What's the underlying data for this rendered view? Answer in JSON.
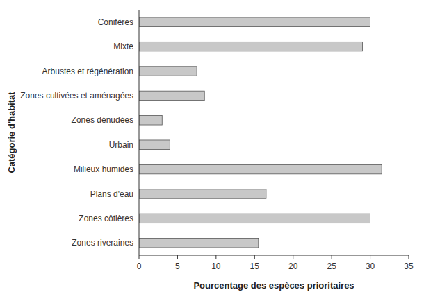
{
  "chart_data": {
    "type": "bar",
    "orientation": "horizontal",
    "categories": [
      "Zones riveraines",
      "Zones côtières",
      "Plans d'eau",
      "Milieux humides",
      "Urbain",
      "Zones dénudées",
      "Zones cultivées et aménagées",
      "Arbustes et régénération",
      "Mixte",
      "Conifères"
    ],
    "values": [
      15.5,
      30.0,
      16.5,
      31.5,
      4.0,
      3.0,
      8.5,
      7.5,
      29.0,
      30.0
    ],
    "color": "#c8c8c8",
    "xlabel": "Pourcentage des espèces prioritaires",
    "ylabel": "Catégorie d'habitat",
    "xlim": [
      0,
      35
    ],
    "xticks": [
      0,
      5,
      10,
      15,
      20,
      25,
      30,
      35
    ],
    "grid": false
  }
}
